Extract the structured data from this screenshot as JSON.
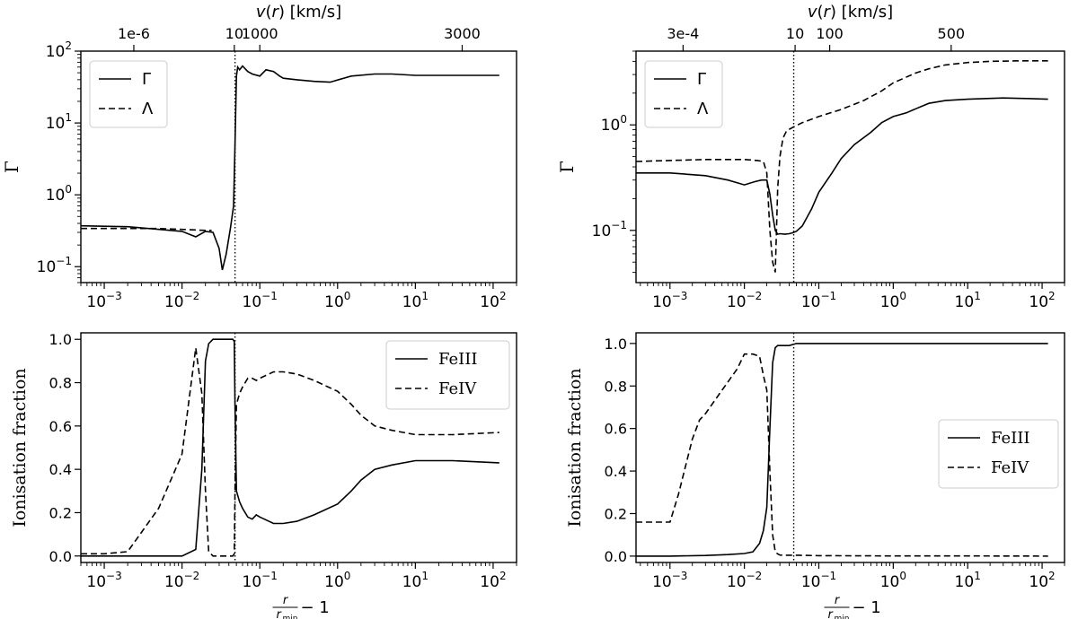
{
  "chart_data": [
    {
      "id": "tl",
      "type": "line",
      "title": "",
      "xlabel": "",
      "ylabel": "Γ",
      "xscale": "log",
      "yscale": "log",
      "xlim": [
        0.0005,
        200
      ],
      "ylim": [
        0.06,
        100
      ],
      "x_ticks": [
        {
          "v": 0.001,
          "m": "10",
          "e": "−3"
        },
        {
          "v": 0.01,
          "m": "10",
          "e": "−2"
        },
        {
          "v": 0.1,
          "m": "10",
          "e": "−1"
        },
        {
          "v": 1,
          "m": "10",
          "e": "0"
        },
        {
          "v": 10,
          "m": "10",
          "e": "1"
        },
        {
          "v": 100,
          "m": "10",
          "e": "2"
        }
      ],
      "y_ticks": [
        {
          "v": 0.1,
          "m": "10",
          "e": "−1"
        },
        {
          "v": 1,
          "m": "10",
          "e": "0"
        },
        {
          "v": 10,
          "m": "10",
          "e": "1"
        },
        {
          "v": 100,
          "m": "10",
          "e": "2"
        }
      ],
      "top_axis": {
        "label_var": "v",
        "label_arg": "(r)",
        "label_unit": " [km/s]",
        "ticks": [
          {
            "x": 0.0024,
            "label": "1e-6"
          },
          {
            "x": 0.047,
            "label": "10"
          },
          {
            "x": 0.1,
            "label": "1000"
          },
          {
            "x": 40,
            "label": "3000"
          }
        ]
      },
      "vline_x": 0.048,
      "legend": {
        "position": "upper left"
      },
      "series": [
        {
          "name": "Γ",
          "style": "solid",
          "x": [
            0.0005,
            0.002,
            0.01,
            0.015,
            0.02,
            0.025,
            0.03,
            0.033,
            0.037,
            0.042,
            0.046,
            0.048,
            0.05,
            0.052,
            0.055,
            0.06,
            0.07,
            0.08,
            0.1,
            0.12,
            0.15,
            0.18,
            0.2,
            0.3,
            0.5,
            0.8,
            1.5,
            3,
            5,
            10,
            30,
            60,
            120
          ],
          "y": [
            0.37,
            0.36,
            0.31,
            0.26,
            0.31,
            0.3,
            0.18,
            0.09,
            0.15,
            0.35,
            0.7,
            5,
            45,
            60,
            55,
            62,
            52,
            48,
            45,
            55,
            52,
            45,
            42,
            40,
            38,
            37,
            45,
            48,
            48,
            46,
            46,
            46,
            46
          ]
        },
        {
          "name": "Λ",
          "style": "dashed",
          "x": [
            0.0005,
            0.001,
            0.005,
            0.01,
            0.02,
            0.024
          ],
          "y": [
            0.34,
            0.34,
            0.34,
            0.33,
            0.32,
            0.32
          ]
        }
      ]
    },
    {
      "id": "tr",
      "type": "line",
      "title": "",
      "xlabel": "",
      "ylabel": "Γ",
      "xscale": "log",
      "yscale": "log",
      "xlim": [
        0.00035,
        200
      ],
      "ylim": [
        0.032,
        5
      ],
      "x_ticks": [
        {
          "v": 0.001,
          "m": "10",
          "e": "−3"
        },
        {
          "v": 0.01,
          "m": "10",
          "e": "−2"
        },
        {
          "v": 0.1,
          "m": "10",
          "e": "−1"
        },
        {
          "v": 1,
          "m": "10",
          "e": "0"
        },
        {
          "v": 10,
          "m": "10",
          "e": "1"
        },
        {
          "v": 100,
          "m": "10",
          "e": "2"
        }
      ],
      "y_ticks": [
        {
          "v": 0.1,
          "m": "10",
          "e": "−1"
        },
        {
          "v": 1,
          "m": "10",
          "e": "0"
        }
      ],
      "top_axis": {
        "label_var": "v",
        "label_arg": "(r)",
        "label_unit": " [km/s]",
        "ticks": [
          {
            "x": 0.0015,
            "label": "3e-4"
          },
          {
            "x": 0.048,
            "label": "10"
          },
          {
            "x": 0.14,
            "label": "100"
          },
          {
            "x": 6,
            "label": "500"
          }
        ]
      },
      "vline_x": 0.046,
      "legend": {
        "position": "upper left"
      },
      "series": [
        {
          "name": "Γ",
          "style": "solid",
          "x": [
            0.00035,
            0.001,
            0.003,
            0.006,
            0.01,
            0.014,
            0.017,
            0.02,
            0.022,
            0.024,
            0.026,
            0.028,
            0.03,
            0.035,
            0.04,
            0.045,
            0.05,
            0.06,
            0.08,
            0.1,
            0.15,
            0.2,
            0.3,
            0.5,
            0.7,
            1,
            1.5,
            2,
            3,
            5,
            10,
            30,
            60,
            120
          ],
          "y": [
            0.35,
            0.35,
            0.33,
            0.3,
            0.27,
            0.29,
            0.3,
            0.3,
            0.22,
            0.14,
            0.1,
            0.092,
            0.093,
            0.092,
            0.093,
            0.095,
            0.098,
            0.11,
            0.16,
            0.23,
            0.35,
            0.48,
            0.65,
            0.85,
            1.05,
            1.2,
            1.3,
            1.42,
            1.6,
            1.7,
            1.75,
            1.8,
            1.78,
            1.75
          ]
        },
        {
          "name": "Λ",
          "style": "dashed",
          "x": [
            0.00035,
            0.001,
            0.003,
            0.006,
            0.01,
            0.015,
            0.018,
            0.02,
            0.022,
            0.024,
            0.026,
            0.028,
            0.03,
            0.033,
            0.037,
            0.045,
            0.06,
            0.1,
            0.2,
            0.4,
            0.7,
            1,
            2,
            3,
            5,
            10,
            20,
            50,
            120
          ],
          "y": [
            0.45,
            0.46,
            0.47,
            0.47,
            0.47,
            0.46,
            0.45,
            0.35,
            0.1,
            0.05,
            0.04,
            0.25,
            0.5,
            0.75,
            0.88,
            0.95,
            1.05,
            1.2,
            1.4,
            1.7,
            2.1,
            2.5,
            3.1,
            3.4,
            3.7,
            3.9,
            4.0,
            4.05,
            4.05
          ]
        }
      ]
    },
    {
      "id": "bl",
      "type": "line",
      "title": "",
      "xlabel": "r/r_min − 1",
      "xlabel_num": "r",
      "xlabel_den": "r",
      "xlabel_den_sub": "min",
      "xlabel_rest": " − 1",
      "ylabel": "Ionisation fraction",
      "xscale": "log",
      "yscale": "linear",
      "xlim": [
        0.0005,
        200
      ],
      "ylim": [
        -0.03,
        1.03
      ],
      "x_ticks": [
        {
          "v": 0.001,
          "m": "10",
          "e": "−3"
        },
        {
          "v": 0.01,
          "m": "10",
          "e": "−2"
        },
        {
          "v": 0.1,
          "m": "10",
          "e": "−1"
        },
        {
          "v": 1,
          "m": "10",
          "e": "0"
        },
        {
          "v": 10,
          "m": "10",
          "e": "1"
        },
        {
          "v": 100,
          "m": "10",
          "e": "2"
        }
      ],
      "y_ticks": [
        {
          "v": 0.0,
          "t": "0.0"
        },
        {
          "v": 0.2,
          "t": "0.2"
        },
        {
          "v": 0.4,
          "t": "0.4"
        },
        {
          "v": 0.6,
          "t": "0.6"
        },
        {
          "v": 0.8,
          "t": "0.8"
        },
        {
          "v": 1.0,
          "t": "1.0"
        }
      ],
      "vline_x": 0.048,
      "legend": {
        "position": "upper right"
      },
      "series": [
        {
          "name": "FeIII",
          "style": "solid",
          "x": [
            0.0005,
            0.001,
            0.005,
            0.01,
            0.015,
            0.018,
            0.02,
            0.022,
            0.025,
            0.03,
            0.035,
            0.04,
            0.045,
            0.047,
            0.048,
            0.05,
            0.055,
            0.06,
            0.07,
            0.08,
            0.09,
            0.1,
            0.15,
            0.2,
            0.3,
            0.5,
            1,
            1.5,
            2,
            3,
            5,
            10,
            30,
            120
          ],
          "y": [
            0.0,
            0.0,
            0.0,
            0.0,
            0.03,
            0.4,
            0.9,
            0.98,
            1.0,
            1.0,
            1.0,
            1.0,
            1.0,
            0.99,
            0.7,
            0.3,
            0.25,
            0.22,
            0.18,
            0.17,
            0.19,
            0.18,
            0.15,
            0.15,
            0.16,
            0.19,
            0.24,
            0.3,
            0.35,
            0.4,
            0.42,
            0.44,
            0.44,
            0.43
          ]
        },
        {
          "name": "FeIV",
          "style": "dashed",
          "x": [
            0.0005,
            0.001,
            0.002,
            0.005,
            0.01,
            0.015,
            0.018,
            0.02,
            0.022,
            0.025,
            0.03,
            0.04,
            0.045,
            0.047,
            0.048,
            0.05,
            0.055,
            0.06,
            0.07,
            0.08,
            0.09,
            0.1,
            0.15,
            0.2,
            0.3,
            0.5,
            1,
            1.5,
            2,
            3,
            5,
            10,
            30,
            120
          ],
          "y": [
            0.01,
            0.01,
            0.02,
            0.22,
            0.47,
            0.96,
            0.75,
            0.3,
            0.02,
            0.0,
            0.0,
            0.0,
            0.0,
            0.01,
            0.3,
            0.7,
            0.75,
            0.78,
            0.82,
            0.82,
            0.81,
            0.82,
            0.85,
            0.85,
            0.84,
            0.81,
            0.76,
            0.7,
            0.65,
            0.6,
            0.58,
            0.56,
            0.56,
            0.57
          ]
        }
      ]
    },
    {
      "id": "br",
      "type": "line",
      "title": "",
      "xlabel": "r/r_min − 1",
      "xlabel_num": "r",
      "xlabel_den": "r",
      "xlabel_den_sub": "min",
      "xlabel_rest": " − 1",
      "ylabel": "Ionisation fraction",
      "xscale": "log",
      "yscale": "linear",
      "xlim": [
        0.00035,
        200
      ],
      "ylim": [
        -0.03,
        1.05
      ],
      "x_ticks": [
        {
          "v": 0.001,
          "m": "10",
          "e": "−3"
        },
        {
          "v": 0.01,
          "m": "10",
          "e": "−2"
        },
        {
          "v": 0.1,
          "m": "10",
          "e": "−1"
        },
        {
          "v": 1,
          "m": "10",
          "e": "0"
        },
        {
          "v": 10,
          "m": "10",
          "e": "1"
        },
        {
          "v": 100,
          "m": "10",
          "e": "2"
        }
      ],
      "y_ticks": [
        {
          "v": 0.0,
          "t": "0.0"
        },
        {
          "v": 0.2,
          "t": "0.2"
        },
        {
          "v": 0.4,
          "t": "0.4"
        },
        {
          "v": 0.6,
          "t": "0.6"
        },
        {
          "v": 0.8,
          "t": "0.8"
        },
        {
          "v": 1.0,
          "t": "1.0"
        }
      ],
      "vline_x": 0.046,
      "legend": {
        "position": "center right"
      },
      "series": [
        {
          "name": "FeIII",
          "style": "solid",
          "x": [
            0.00035,
            0.001,
            0.003,
            0.006,
            0.01,
            0.013,
            0.016,
            0.018,
            0.02,
            0.022,
            0.024,
            0.026,
            0.028,
            0.03,
            0.035,
            0.04,
            0.05,
            0.1,
            1,
            10,
            120
          ],
          "y": [
            0.0,
            0.0,
            0.003,
            0.007,
            0.012,
            0.02,
            0.06,
            0.12,
            0.23,
            0.6,
            0.91,
            0.98,
            0.99,
            0.99,
            0.99,
            0.99,
            1.0,
            1.0,
            1.0,
            1.0,
            1.0
          ]
        },
        {
          "name": "FeIV",
          "style": "dashed",
          "x": [
            0.00035,
            0.0007,
            0.001,
            0.0013,
            0.002,
            0.0025,
            0.003,
            0.005,
            0.008,
            0.01,
            0.013,
            0.016,
            0.018,
            0.02,
            0.022,
            0.024,
            0.026,
            0.028,
            0.03,
            0.035,
            0.04,
            0.05,
            0.1,
            1,
            10,
            120
          ],
          "y": [
            0.16,
            0.16,
            0.16,
            0.29,
            0.55,
            0.64,
            0.67,
            0.78,
            0.88,
            0.95,
            0.95,
            0.94,
            0.85,
            0.78,
            0.4,
            0.1,
            0.02,
            0.01,
            0.005,
            0.004,
            0.004,
            0.004,
            0.002,
            0.001,
            0.001,
            0.0
          ]
        }
      ]
    }
  ]
}
